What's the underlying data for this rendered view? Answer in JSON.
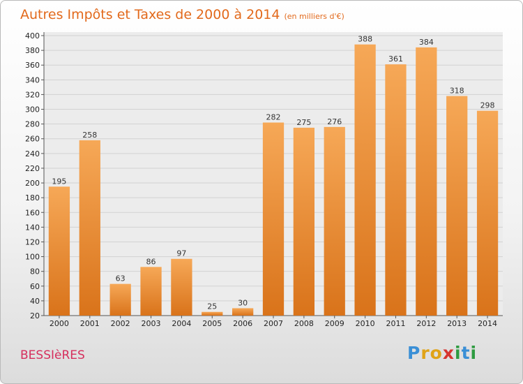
{
  "title": "Autres Impôts et Taxes de 2000 à 2014",
  "unit_note": "(en milliers d'€)",
  "city": "BESSIèRES",
  "brand": {
    "letters": [
      "P",
      "r",
      "o",
      "x",
      "i",
      "t",
      "i"
    ],
    "colors": [
      "#3a8fd6",
      "#e0a317",
      "#e0a317",
      "#d6342f",
      "#2e9b40",
      "#3a8fd6",
      "#2e9b40"
    ]
  },
  "colors": {
    "bar": "#f09a3e",
    "bar_dark": "#d9731a",
    "title": "#e2691b",
    "city": "#d62e5c"
  },
  "chart_data": {
    "type": "bar",
    "title": "Autres Impôts et Taxes de 2000 à 2014",
    "xlabel": "",
    "ylabel": "",
    "categories": [
      "2000",
      "2001",
      "2002",
      "2003",
      "2004",
      "2005",
      "2006",
      "2007",
      "2008",
      "2009",
      "2010",
      "2011",
      "2012",
      "2013",
      "2014"
    ],
    "values": [
      195,
      258,
      63,
      86,
      97,
      25,
      30,
      282,
      275,
      276,
      388,
      361,
      384,
      318,
      298
    ],
    "ylim": [
      20,
      400
    ],
    "yticks": [
      20,
      40,
      60,
      80,
      100,
      120,
      140,
      160,
      180,
      200,
      220,
      240,
      260,
      280,
      300,
      320,
      340,
      360,
      380,
      400
    ],
    "grid": true
  }
}
